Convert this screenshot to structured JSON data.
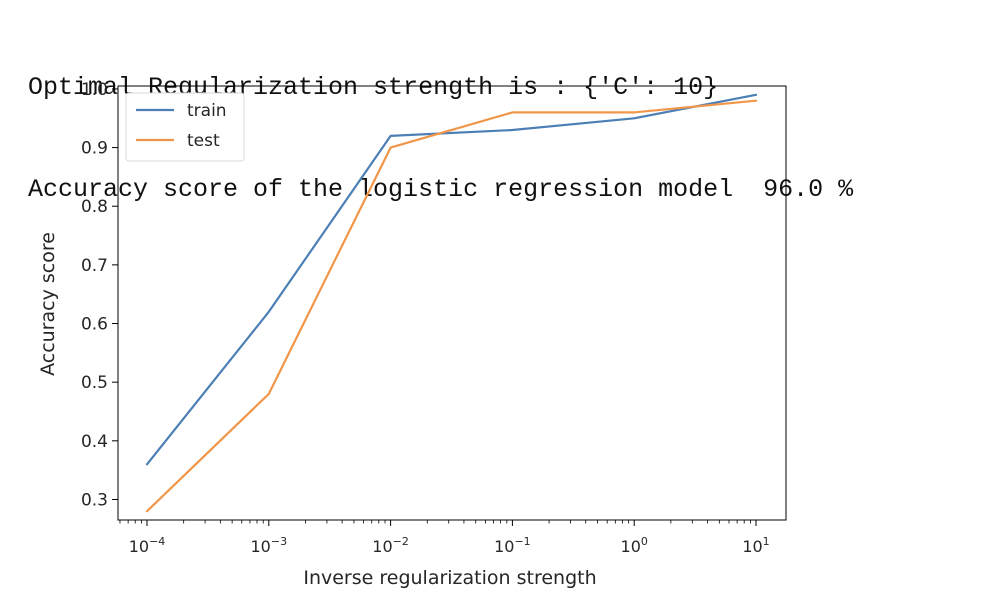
{
  "output_lines": [
    "Optimal Regularization strength is : {'C': 10}",
    "Accuracy score of the logistic regression model  96.0 %"
  ],
  "chart_data": {
    "type": "line",
    "xscale": "log",
    "x": [
      0.0001,
      0.001,
      0.01,
      0.1,
      1,
      10
    ],
    "x_tick_labels": [
      {
        "base": "10",
        "exp": "−4"
      },
      {
        "base": "10",
        "exp": "−3"
      },
      {
        "base": "10",
        "exp": "−2"
      },
      {
        "base": "10",
        "exp": "−1"
      },
      {
        "base": "10",
        "exp": "0"
      },
      {
        "base": "10",
        "exp": "1"
      }
    ],
    "y_ticks": [
      "0.3",
      "0.4",
      "0.5",
      "0.6",
      "0.7",
      "0.8",
      "0.9",
      "1.0"
    ],
    "xlabel": "Inverse regularization strength",
    "ylabel": "Accuracy score",
    "ylim": [
      0.265,
      1.005
    ],
    "legend_position": "top-left",
    "grid": false,
    "series": [
      {
        "name": "train",
        "color": "#4c7fb5",
        "values": [
          0.36,
          0.62,
          0.92,
          0.93,
          0.95,
          0.99
        ]
      },
      {
        "name": "test",
        "color": "#f0964a",
        "values": [
          0.28,
          0.48,
          0.9,
          0.96,
          0.96,
          0.98
        ]
      }
    ]
  }
}
